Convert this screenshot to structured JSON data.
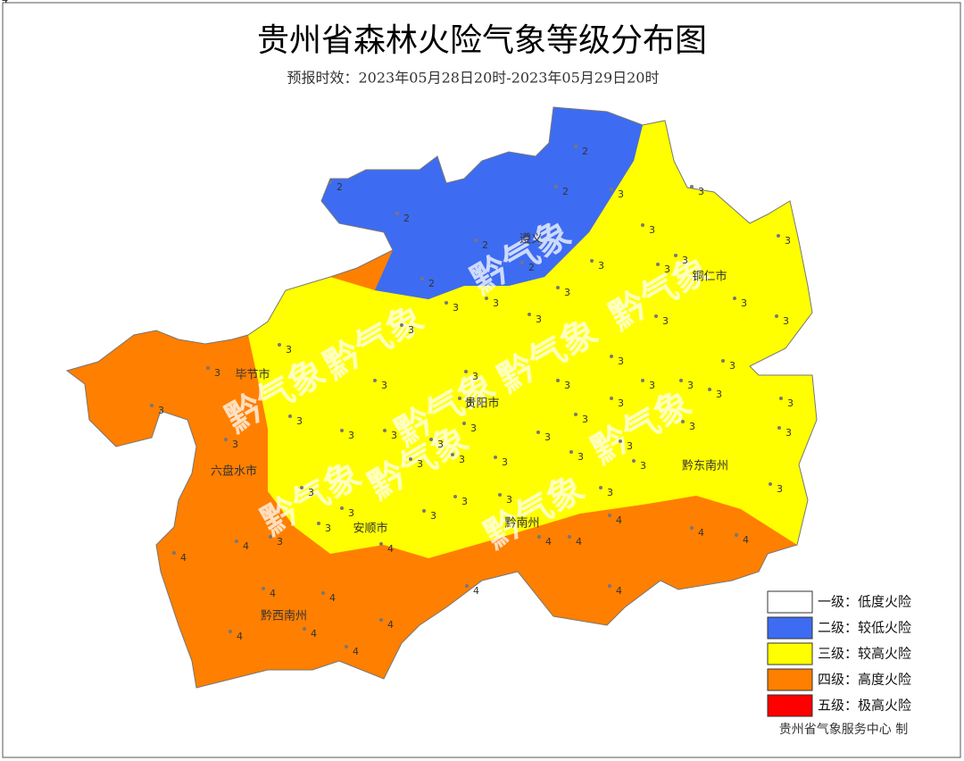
{
  "header": {
    "title": "贵州省森林火险气象等级分布图",
    "subtitle": "预报时效：2023年05月28日20时-2023年05月29日20时"
  },
  "watermark": "黔气象",
  "cities": [
    "遵义",
    "铜仁市",
    "毕节市",
    "贵阳市",
    "六盘水市",
    "黔东南州",
    "安顺市",
    "黔南州",
    "黔西南州"
  ],
  "stations": [
    2,
    2,
    2,
    2,
    2,
    2,
    2,
    3,
    3,
    3,
    3,
    3,
    3,
    3,
    3,
    3,
    3,
    3,
    3,
    3,
    3,
    3,
    3,
    3,
    3,
    3,
    3,
    3,
    3,
    3,
    3,
    3,
    3,
    3,
    3,
    3,
    3,
    3,
    3,
    3,
    3,
    3,
    3,
    3,
    3,
    3,
    3,
    3,
    3,
    3,
    3,
    3,
    3,
    3,
    3,
    3,
    3,
    3,
    3,
    3,
    3,
    4,
    4,
    4,
    4,
    4,
    4,
    4,
    4,
    4,
    4,
    4,
    4,
    4,
    4,
    4,
    4,
    4,
    4,
    4,
    4
  ],
  "legend": [
    {
      "label": "一级：低度火险",
      "color": "#ffffff"
    },
    {
      "label": "二级：较低火险",
      "color": "#3d6cf2"
    },
    {
      "label": "三级：较高火险",
      "color": "#ffff00"
    },
    {
      "label": "四级：高度火险",
      "color": "#ff7f00"
    },
    {
      "label": "五级：极高火险",
      "color": "#ff0000"
    }
  ],
  "credit": "贵州省气象服务中心 制"
}
